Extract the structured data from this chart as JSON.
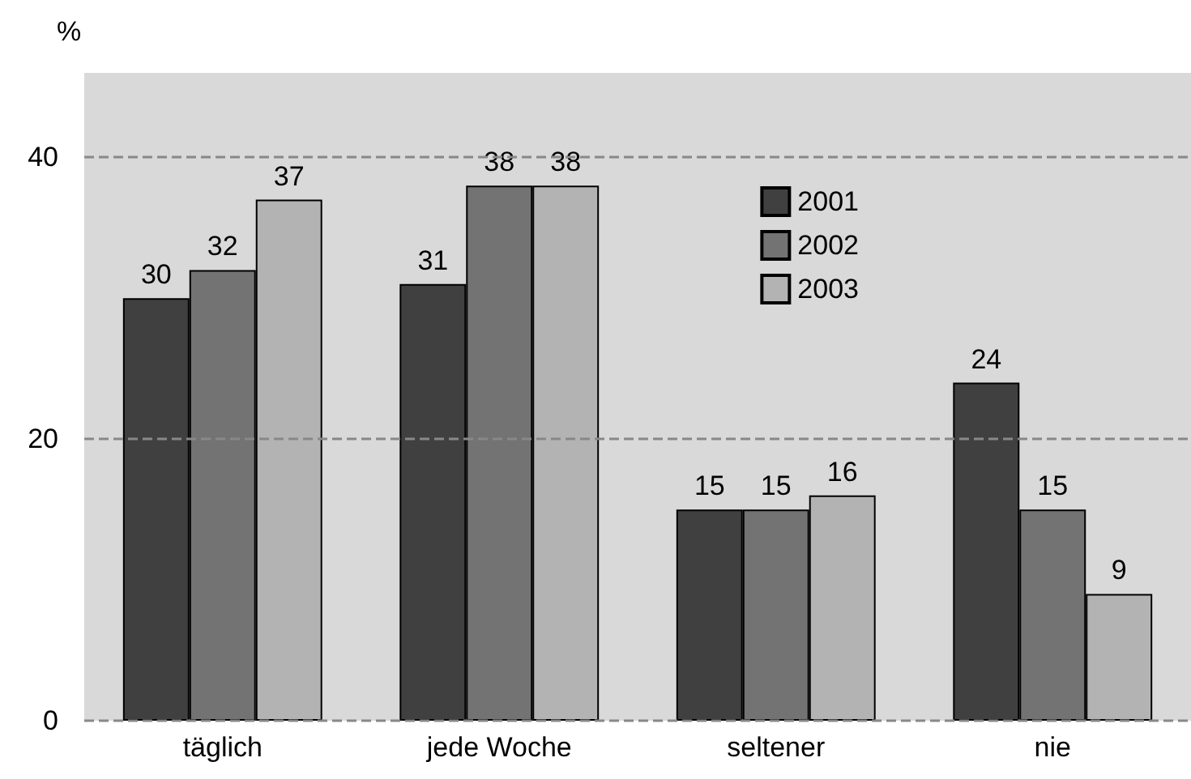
{
  "chart_data": {
    "type": "bar",
    "ylabel": "%",
    "categories": [
      "täglich",
      "jede Woche",
      "seltener",
      "nie"
    ],
    "series": [
      {
        "name": "2001",
        "color": "#404040",
        "values": [
          30,
          31,
          15,
          24
        ]
      },
      {
        "name": "2002",
        "color": "#737373",
        "values": [
          32,
          38,
          15,
          15
        ]
      },
      {
        "name": "2003",
        "color": "#b3b3b3",
        "values": [
          37,
          38,
          16,
          9
        ]
      }
    ],
    "ylim": [
      0,
      46
    ],
    "yticks": [
      0,
      20,
      40
    ],
    "grid": "y",
    "line_style": "dashed",
    "legend": "top right",
    "data_labels": true
  }
}
